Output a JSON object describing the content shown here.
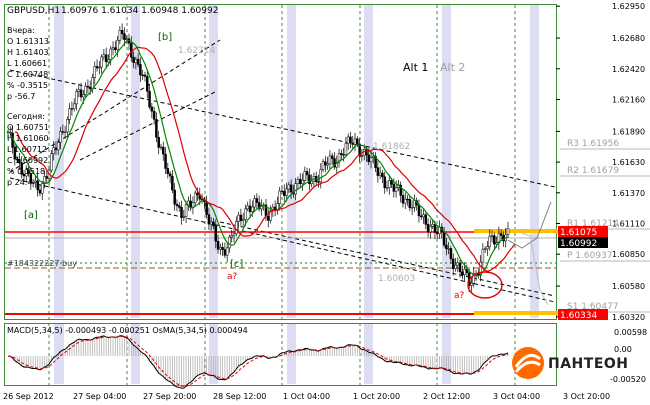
{
  "header": {
    "title": "GBPUSD,H1",
    "ohlc": "1.60976 1.61034 1.60948 1.60992"
  },
  "info_yesterday": {
    "label": "Вчера:",
    "lines": [
      "O 1.61313",
      "H 1.61403",
      "L 1.60661",
      "C 1.60748",
      "% -0.3515",
      "p -56.7"
    ]
  },
  "info_today": {
    "label": "Сегодня:",
    "lines": [
      "O 1.60751",
      "H 1.61060",
      "L 1.60712",
      "C 1.60992",
      "% 0.1518",
      "p 24.4"
    ]
  },
  "alt": {
    "alt1": "Alt 1",
    "alt2": "Alt 2"
  },
  "wave_labels": {
    "b": "[b]",
    "a": "[a]",
    "c": "[c]",
    "a_q1": "a?",
    "a_q2": "a?"
  },
  "price_axis": {
    "ticks": [
      "1.62950",
      "1.62680",
      "1.62420",
      "1.62160",
      "1.61890",
      "1.61630",
      "1.61370",
      "1.61110",
      "1.60850",
      "1.60580",
      "1.60320"
    ]
  },
  "price_tags": {
    "upper_red": "1.61075",
    "current": "1.60992",
    "lower_red": "1.60334"
  },
  "pivots": {
    "r3": "R3 1.61956",
    "r2": "R2 1.61679",
    "r1": "R1 1.61214",
    "p": "P 1.60937",
    "s1": "S1 1.60477"
  },
  "ghost_prices": {
    "g1": "1.62714",
    "g2": "1.61862",
    "g3": "1.60603"
  },
  "order_label": "#184322227 buy",
  "macd": {
    "label": "MACD(5,34,5) -0.000493 -0.000251 OsMA(5,34,5) 0.000494",
    "ticks": [
      "0.00598",
      "0.00",
      "-0.00520"
    ]
  },
  "time_axis": {
    "labels": [
      "26 Sep 2012",
      "27 Sep 04:00",
      "27 Sep 20:00",
      "28 Sep 12:00",
      "1 Oct 04:00",
      "1 Oct 20:00",
      "2 Oct 12:00",
      "3 Oct 04:00",
      "3 Oct 20:00"
    ]
  },
  "brand": {
    "name": "ПАНТЕОН"
  },
  "colors": {
    "background": "#ffffff",
    "frame": "#3c8c3c",
    "candle": "#000000",
    "ma_red": "#e00000",
    "ma_green": "#008800",
    "level_red": "#ff0000",
    "level_yellow": "#ffc000",
    "session_band": "#dcdcf2",
    "pivot_gray": "#a0a0a0",
    "brand_orange": "#ff6a00"
  },
  "chart_data": {
    "type": "candlestick",
    "symbol": "GBPUSD",
    "timeframe": "H1",
    "ylim": [
      1.6031,
      1.6296
    ],
    "x_labels": [
      "26 Sep 2012",
      "27 Sep 04:00",
      "27 Sep 20:00",
      "28 Sep 12:00",
      "1 Oct 04:00",
      "1 Oct 20:00",
      "2 Oct 12:00",
      "3 Oct 04:00",
      "3 Oct 20:00"
    ],
    "close_path": [
      1.6185,
      1.6165,
      1.615,
      1.614,
      1.6152,
      1.6175,
      1.6198,
      1.6215,
      1.6225,
      1.6238,
      1.625,
      1.6262,
      1.627,
      1.6255,
      1.6235,
      1.6205,
      1.617,
      1.614,
      1.612,
      1.6125,
      1.614,
      1.611,
      1.6088,
      1.6095,
      1.6112,
      1.6128,
      1.6125,
      1.612,
      1.6128,
      1.614,
      1.6145,
      1.6148,
      1.615,
      1.616,
      1.6165,
      1.6175,
      1.618,
      1.6172,
      1.616,
      1.615,
      1.614,
      1.6135,
      1.6128,
      1.6115,
      1.611,
      1.61,
      1.6085,
      1.607,
      1.6062,
      1.6075,
      1.6095,
      1.6102,
      1.6099
    ],
    "levels": {
      "upper_red": 1.61075,
      "current": 1.60992,
      "lower_red": 1.60334,
      "r3": 1.61956,
      "r2": 1.61679,
      "r1": 1.61214,
      "p": 1.60937,
      "s1": 1.60477
    },
    "macd_range": [
      -0.0052,
      0.00598
    ]
  }
}
